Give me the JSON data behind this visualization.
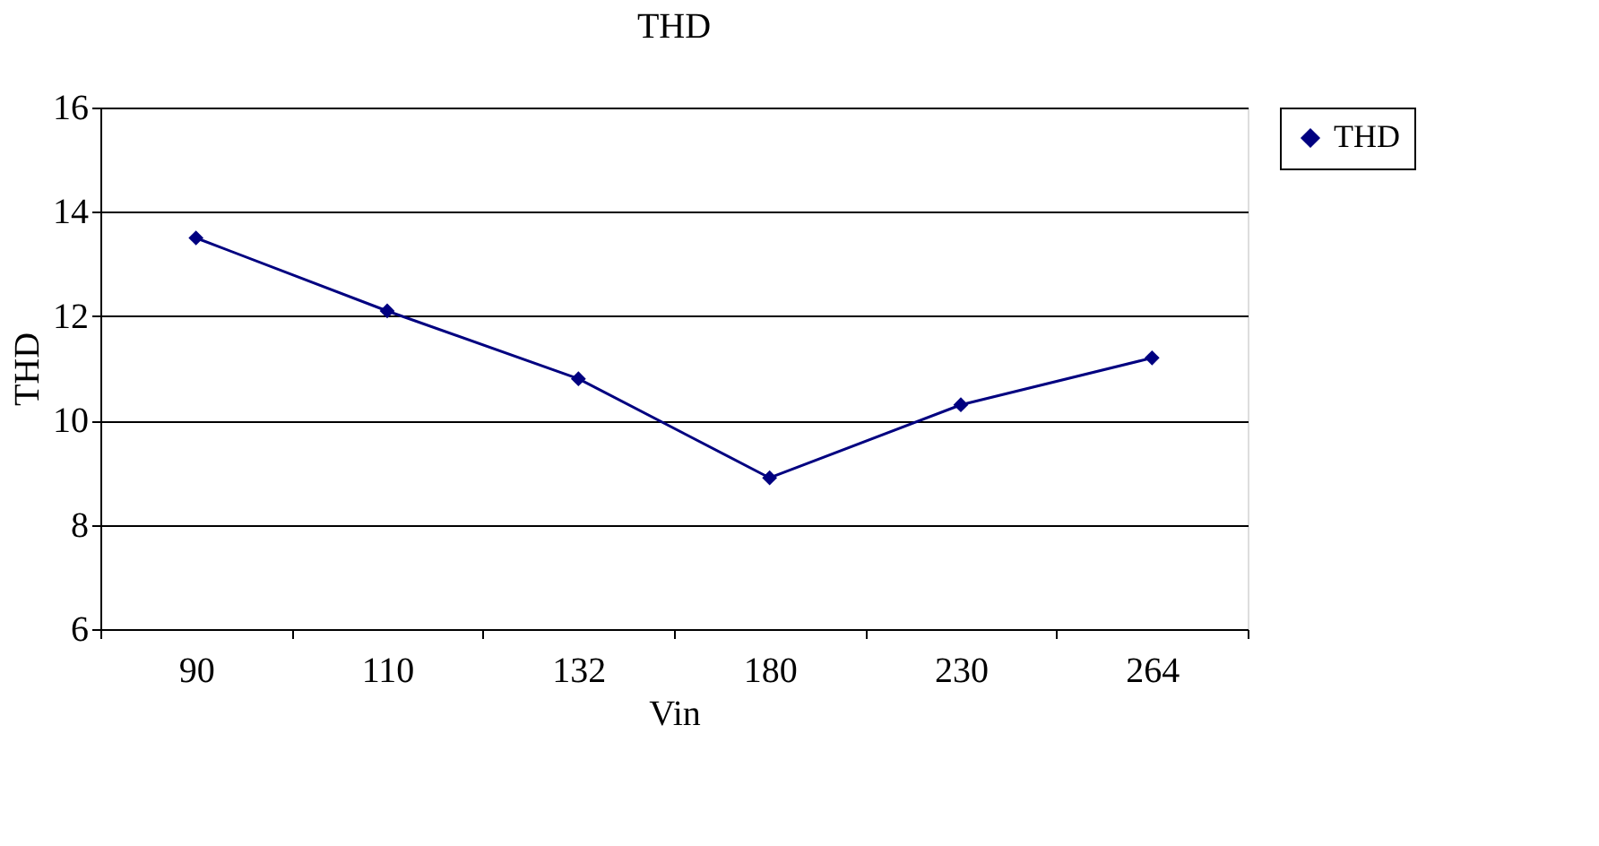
{
  "chart_data": {
    "type": "line",
    "title": "THD",
    "xlabel": "Vin",
    "ylabel": "THD",
    "categories": [
      "90",
      "110",
      "132",
      "180",
      "230",
      "264"
    ],
    "series": [
      {
        "name": "THD",
        "color": "#000080",
        "values": [
          13.5,
          12.1,
          10.8,
          8.9,
          10.3,
          11.2
        ]
      }
    ],
    "ylim": [
      6,
      16
    ],
    "yticks": [
      6,
      8,
      10,
      12,
      14,
      16
    ],
    "grid": "y",
    "legend": "right",
    "marker": "diamond",
    "line_style": "solid"
  }
}
